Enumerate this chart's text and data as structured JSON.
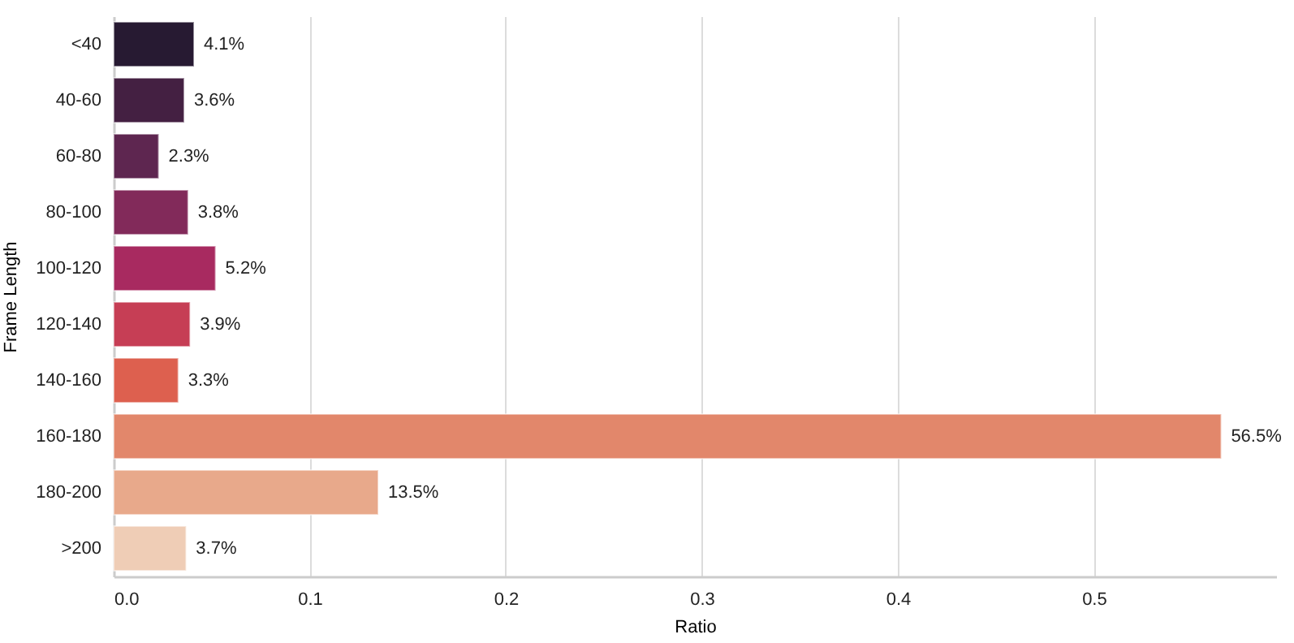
{
  "chart_data": {
    "type": "bar",
    "orientation": "horizontal",
    "xlabel": "Ratio",
    "ylabel": "Frame Length",
    "categories": [
      "<40",
      "40-60",
      "60-80",
      "80-100",
      "100-120",
      "120-140",
      "140-160",
      "160-180",
      "180-200",
      ">200"
    ],
    "values": [
      0.041,
      0.036,
      0.023,
      0.038,
      0.052,
      0.039,
      0.033,
      0.565,
      0.135,
      0.037
    ],
    "colors": [
      "#271a32",
      "#442042",
      "#5e2650",
      "#822a5a",
      "#a82a60",
      "#c63e55",
      "#dd604f",
      "#e2876b",
      "#e8a98b",
      "#efcdb6"
    ],
    "value_labels": [
      "4.1%",
      "3.6%",
      "2.3%",
      "3.8%",
      "5.2%",
      "3.9%",
      "3.3%",
      "56.5%",
      "13.5%",
      "3.7%"
    ],
    "xlim": [
      0,
      0.593
    ],
    "xticks": [
      {
        "value": 0,
        "label": "0.0"
      },
      0.1,
      0.2,
      0.3,
      0.4,
      0.5
    ],
    "grid": "x"
  }
}
